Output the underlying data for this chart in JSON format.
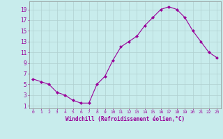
{
  "x": [
    0,
    1,
    2,
    3,
    4,
    5,
    6,
    7,
    8,
    9,
    10,
    11,
    12,
    13,
    14,
    15,
    16,
    17,
    18,
    19,
    20,
    21,
    22,
    23
  ],
  "y": [
    6.0,
    5.5,
    5.0,
    3.5,
    3.0,
    2.0,
    1.5,
    1.5,
    5.0,
    6.5,
    9.5,
    12.0,
    13.0,
    14.0,
    16.0,
    17.5,
    19.0,
    19.5,
    19.0,
    17.5,
    15.0,
    13.0,
    11.0,
    10.0
  ],
  "line_color": "#990099",
  "marker": "D",
  "marker_size": 2,
  "bg_color": "#c8ecec",
  "grid_color": "#b0d0d0",
  "xlabel": "Windchill (Refroidissement éolien,°C)",
  "xlabel_color": "#990099",
  "tick_color": "#990099",
  "ylabel_ticks": [
    1,
    3,
    5,
    7,
    9,
    11,
    13,
    15,
    17,
    19
  ],
  "xlim": [
    -0.5,
    23.5
  ],
  "ylim": [
    0.5,
    20.5
  ],
  "xtick_labels": [
    "0",
    "1",
    "2",
    "3",
    "4",
    "5",
    "6",
    "7",
    "8",
    "9",
    "10",
    "11",
    "12",
    "13",
    "14",
    "15",
    "16",
    "17",
    "18",
    "19",
    "20",
    "21",
    "22",
    "23"
  ]
}
